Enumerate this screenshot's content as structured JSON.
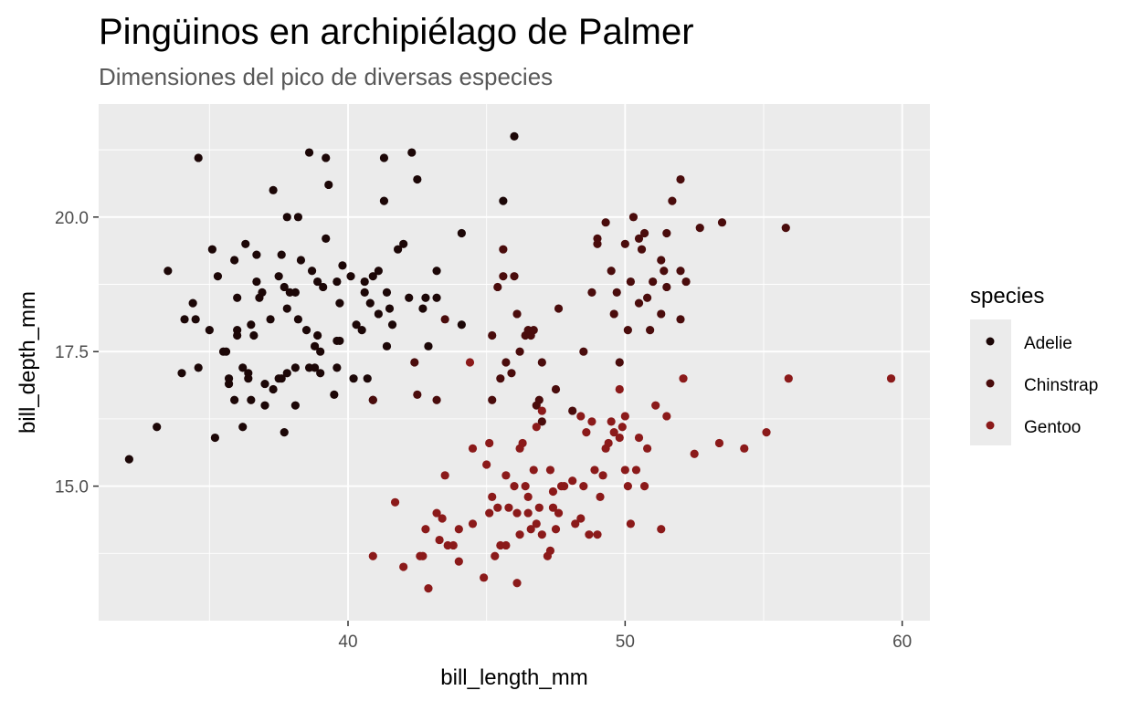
{
  "chart_data": {
    "type": "scatter",
    "title": "Pingüinos en archipiélago de Palmer",
    "subtitle": "Dimensiones del pico de diversas especies",
    "xlabel": "bill_length_mm",
    "ylabel": "bill_depth_mm",
    "xlim": [
      31.0,
      61.0
    ],
    "ylim": [
      12.5,
      22.1
    ],
    "x_ticks": [
      40,
      50,
      60
    ],
    "x_tick_labels": [
      "40",
      "50",
      "60"
    ],
    "y_ticks": [
      15.0,
      17.5,
      20.0
    ],
    "y_tick_labels": [
      "15.0",
      "17.5",
      "20.0"
    ],
    "grid": true,
    "legend": {
      "title": "species",
      "position": "right"
    },
    "colors": {
      "panel": "#ebebeb",
      "grid": "#ffffff",
      "Adelie": "#1c0707",
      "Chinstrap": "#4a0c0c",
      "Gentoo": "#8b1a1a"
    },
    "series": [
      {
        "name": "Adelie",
        "points": [
          [
            32.1,
            15.5
          ],
          [
            33.1,
            16.1
          ],
          [
            33.5,
            19.0
          ],
          [
            34.0,
            17.1
          ],
          [
            34.1,
            18.1
          ],
          [
            34.4,
            18.4
          ],
          [
            34.5,
            18.1
          ],
          [
            34.6,
            21.1
          ],
          [
            34.6,
            17.2
          ],
          [
            35.0,
            17.9
          ],
          [
            35.1,
            19.4
          ],
          [
            35.2,
            15.9
          ],
          [
            35.3,
            18.9
          ],
          [
            35.5,
            17.5
          ],
          [
            35.6,
            17.5
          ],
          [
            35.7,
            16.9
          ],
          [
            35.7,
            17.0
          ],
          [
            35.9,
            16.6
          ],
          [
            35.9,
            19.2
          ],
          [
            36.0,
            17.9
          ],
          [
            36.0,
            17.8
          ],
          [
            36.0,
            18.5
          ],
          [
            36.2,
            16.1
          ],
          [
            36.2,
            17.2
          ],
          [
            36.3,
            19.5
          ],
          [
            36.4,
            17.0
          ],
          [
            36.5,
            18.0
          ],
          [
            36.5,
            16.6
          ],
          [
            36.6,
            17.8
          ],
          [
            36.7,
            18.8
          ],
          [
            36.7,
            19.3
          ],
          [
            36.8,
            18.5
          ],
          [
            36.9,
            18.6
          ],
          [
            37.0,
            16.9
          ],
          [
            37.0,
            16.5
          ],
          [
            37.2,
            18.1
          ],
          [
            37.3,
            16.8
          ],
          [
            37.3,
            20.5
          ],
          [
            37.5,
            18.9
          ],
          [
            37.6,
            17.0
          ],
          [
            37.6,
            19.3
          ],
          [
            37.7,
            16.0
          ],
          [
            37.7,
            18.7
          ],
          [
            37.8,
            17.1
          ],
          [
            37.8,
            18.3
          ],
          [
            37.8,
            20.0
          ],
          [
            37.9,
            18.6
          ],
          [
            38.1,
            17.2
          ],
          [
            38.1,
            18.6
          ],
          [
            38.1,
            16.5
          ],
          [
            38.2,
            18.1
          ],
          [
            38.2,
            20.0
          ],
          [
            38.3,
            19.2
          ],
          [
            38.5,
            17.9
          ],
          [
            38.6,
            21.2
          ],
          [
            38.6,
            17.2
          ],
          [
            38.7,
            19.0
          ],
          [
            38.8,
            17.2
          ],
          [
            38.8,
            17.6
          ],
          [
            38.9,
            18.8
          ],
          [
            39.0,
            17.1
          ],
          [
            39.1,
            18.7
          ],
          [
            39.2,
            19.6
          ],
          [
            39.2,
            21.1
          ],
          [
            39.3,
            20.6
          ],
          [
            39.5,
            16.7
          ],
          [
            39.6,
            17.7
          ],
          [
            39.6,
            18.8
          ],
          [
            39.7,
            18.4
          ],
          [
            39.8,
            19.1
          ],
          [
            40.1,
            18.9
          ],
          [
            40.2,
            17.0
          ],
          [
            40.3,
            18.0
          ],
          [
            40.5,
            17.9
          ],
          [
            40.6,
            18.6
          ],
          [
            40.7,
            17.0
          ],
          [
            40.8,
            18.4
          ],
          [
            40.9,
            18.9
          ],
          [
            41.1,
            18.2
          ],
          [
            41.1,
            19.0
          ],
          [
            41.3,
            20.3
          ],
          [
            41.3,
            21.1
          ],
          [
            41.4,
            18.6
          ],
          [
            41.5,
            18.3
          ],
          [
            41.6,
            18.0
          ],
          [
            41.8,
            19.4
          ],
          [
            42.0,
            19.5
          ],
          [
            42.2,
            18.5
          ],
          [
            42.3,
            21.2
          ],
          [
            42.5,
            20.7
          ],
          [
            42.7,
            18.3
          ],
          [
            42.8,
            18.5
          ],
          [
            42.9,
            17.6
          ],
          [
            43.2,
            19.0
          ],
          [
            43.2,
            18.5
          ],
          [
            44.1,
            19.7
          ],
          [
            44.1,
            18.0
          ],
          [
            45.6,
            20.3
          ],
          [
            46.0,
            21.5
          ],
          [
            40.9,
            16.6
          ],
          [
            41.4,
            17.6
          ],
          [
            39.6,
            17.2
          ],
          [
            39.0,
            17.5
          ],
          [
            38.9,
            17.8
          ],
          [
            37.5,
            17.0
          ],
          [
            36.4,
            17.1
          ],
          [
            40.6,
            18.8
          ],
          [
            39.7,
            17.7
          ]
        ]
      },
      {
        "name": "Chinstrap",
        "points": [
          [
            40.9,
            16.6
          ],
          [
            42.4,
            17.3
          ],
          [
            42.5,
            16.7
          ],
          [
            43.2,
            16.6
          ],
          [
            43.5,
            18.1
          ],
          [
            45.2,
            17.8
          ],
          [
            45.2,
            16.6
          ],
          [
            45.4,
            18.7
          ],
          [
            45.5,
            17.0
          ],
          [
            45.6,
            19.4
          ],
          [
            45.7,
            17.3
          ],
          [
            45.9,
            17.1
          ],
          [
            46.0,
            18.9
          ],
          [
            46.1,
            18.2
          ],
          [
            46.2,
            17.5
          ],
          [
            46.4,
            17.8
          ],
          [
            46.5,
            17.9
          ],
          [
            46.6,
            17.8
          ],
          [
            46.7,
            17.9
          ],
          [
            46.8,
            16.5
          ],
          [
            46.9,
            16.6
          ],
          [
            47.0,
            17.3
          ],
          [
            47.5,
            16.8
          ],
          [
            47.6,
            18.3
          ],
          [
            48.1,
            16.4
          ],
          [
            48.5,
            17.5
          ],
          [
            49.0,
            19.5
          ],
          [
            49.0,
            19.6
          ],
          [
            49.3,
            19.9
          ],
          [
            49.5,
            19.0
          ],
          [
            49.6,
            18.2
          ],
          [
            49.7,
            18.6
          ],
          [
            49.8,
            17.3
          ],
          [
            50.0,
            19.5
          ],
          [
            50.1,
            17.9
          ],
          [
            50.2,
            18.8
          ],
          [
            50.3,
            20.0
          ],
          [
            50.5,
            18.4
          ],
          [
            50.6,
            19.4
          ],
          [
            50.7,
            19.7
          ],
          [
            50.8,
            18.5
          ],
          [
            50.9,
            17.9
          ],
          [
            51.0,
            18.8
          ],
          [
            51.3,
            18.2
          ],
          [
            51.3,
            19.2
          ],
          [
            51.4,
            19.0
          ],
          [
            51.5,
            18.7
          ],
          [
            51.7,
            20.3
          ],
          [
            52.0,
            18.1
          ],
          [
            52.0,
            20.7
          ],
          [
            52.2,
            18.8
          ],
          [
            52.7,
            19.8
          ],
          [
            53.5,
            19.9
          ],
          [
            55.8,
            19.8
          ],
          [
            52.0,
            19.0
          ],
          [
            51.5,
            19.7
          ],
          [
            50.5,
            19.6
          ],
          [
            48.8,
            18.6
          ],
          [
            47.0,
            16.2
          ],
          [
            45.6,
            18.9
          ]
        ]
      },
      {
        "name": "Gentoo",
        "points": [
          [
            40.9,
            13.7
          ],
          [
            41.7,
            14.7
          ],
          [
            42.0,
            13.5
          ],
          [
            42.6,
            13.7
          ],
          [
            42.7,
            13.7
          ],
          [
            42.8,
            14.2
          ],
          [
            42.9,
            13.1
          ],
          [
            43.2,
            14.5
          ],
          [
            43.3,
            14.0
          ],
          [
            43.4,
            14.4
          ],
          [
            43.5,
            15.2
          ],
          [
            43.6,
            13.9
          ],
          [
            44.0,
            13.6
          ],
          [
            44.4,
            17.3
          ],
          [
            44.5,
            14.3
          ],
          [
            44.9,
            13.3
          ],
          [
            45.0,
            15.4
          ],
          [
            45.1,
            14.5
          ],
          [
            45.2,
            14.8
          ],
          [
            45.3,
            13.7
          ],
          [
            45.4,
            14.6
          ],
          [
            45.5,
            13.9
          ],
          [
            45.7,
            13.9
          ],
          [
            45.8,
            14.6
          ],
          [
            46.0,
            15.0
          ],
          [
            46.1,
            13.2
          ],
          [
            46.2,
            14.1
          ],
          [
            46.3,
            15.8
          ],
          [
            46.4,
            15.0
          ],
          [
            46.5,
            14.5
          ],
          [
            46.6,
            14.2
          ],
          [
            46.7,
            15.3
          ],
          [
            46.8,
            14.3
          ],
          [
            46.9,
            14.6
          ],
          [
            47.0,
            14.1
          ],
          [
            47.2,
            13.7
          ],
          [
            47.3,
            15.3
          ],
          [
            47.4,
            14.6
          ],
          [
            47.5,
            14.2
          ],
          [
            47.6,
            14.5
          ],
          [
            47.7,
            15.0
          ],
          [
            47.8,
            15.0
          ],
          [
            48.1,
            15.1
          ],
          [
            48.2,
            14.3
          ],
          [
            48.4,
            14.4
          ],
          [
            48.5,
            15.0
          ],
          [
            48.6,
            16.0
          ],
          [
            48.7,
            14.1
          ],
          [
            48.8,
            16.2
          ],
          [
            49.0,
            14.1
          ],
          [
            49.1,
            14.8
          ],
          [
            49.2,
            15.2
          ],
          [
            49.4,
            15.8
          ],
          [
            49.5,
            16.2
          ],
          [
            49.6,
            16.0
          ],
          [
            49.8,
            15.9
          ],
          [
            49.9,
            16.1
          ],
          [
            50.0,
            15.3
          ],
          [
            50.1,
            15.0
          ],
          [
            50.2,
            14.3
          ],
          [
            50.4,
            15.3
          ],
          [
            50.5,
            15.9
          ],
          [
            50.7,
            15.0
          ],
          [
            50.8,
            15.7
          ],
          [
            51.1,
            16.5
          ],
          [
            51.3,
            14.2
          ],
          [
            51.5,
            16.3
          ],
          [
            52.1,
            17.0
          ],
          [
            52.5,
            15.6
          ],
          [
            53.4,
            15.8
          ],
          [
            54.3,
            15.7
          ],
          [
            55.1,
            16.0
          ],
          [
            55.9,
            17.0
          ],
          [
            59.6,
            17.0
          ],
          [
            46.5,
            14.8
          ],
          [
            45.1,
            15.8
          ],
          [
            44.5,
            15.7
          ],
          [
            44.0,
            14.2
          ],
          [
            46.8,
            16.1
          ],
          [
            48.4,
            16.3
          ],
          [
            49.3,
            15.7
          ],
          [
            50.0,
            16.3
          ],
          [
            47.4,
            14.9
          ],
          [
            45.7,
            15.2
          ],
          [
            46.2,
            15.7
          ],
          [
            49.8,
            16.8
          ],
          [
            47.0,
            16.4
          ],
          [
            48.9,
            15.3
          ],
          [
            46.1,
            14.5
          ],
          [
            47.3,
            13.8
          ],
          [
            43.8,
            13.9
          ]
        ]
      }
    ]
  }
}
